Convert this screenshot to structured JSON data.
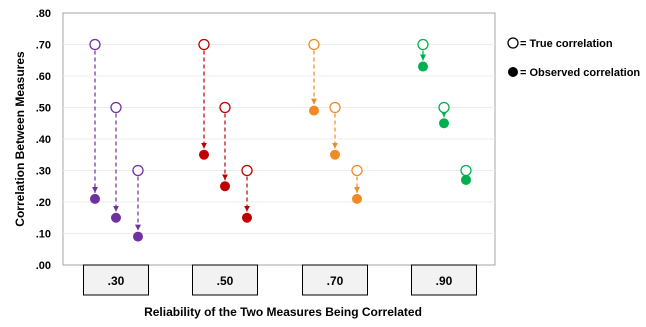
{
  "chart_data": {
    "type": "scatter",
    "xlabel": "Reliability of the Two Measures Being Correlated",
    "ylabel": "Correlation Between Measures",
    "ylim": [
      0,
      0.8
    ],
    "yticks": [
      ".00",
      ".10",
      ".20",
      ".30",
      ".40",
      ".50",
      ".60",
      ".70",
      ".80"
    ],
    "ytick_values": [
      0,
      0.1,
      0.2,
      0.3,
      0.4,
      0.5,
      0.6,
      0.7,
      0.8
    ],
    "grid": true,
    "categories": [
      ".30",
      ".50",
      ".70",
      ".90"
    ],
    "groups": [
      {
        "reliability": ".30",
        "color": "#7030a0",
        "true": [
          0.7,
          0.5,
          0.3
        ],
        "observed": [
          0.21,
          0.15,
          0.09
        ]
      },
      {
        "reliability": ".50",
        "color": "#c00000",
        "true": [
          0.7,
          0.5,
          0.3
        ],
        "observed": [
          0.35,
          0.25,
          0.15
        ]
      },
      {
        "reliability": ".70",
        "color": "#f08a24",
        "true": [
          0.7,
          0.5,
          0.3
        ],
        "observed": [
          0.49,
          0.35,
          0.21
        ]
      },
      {
        "reliability": ".90",
        "color": "#00b050",
        "true": [
          0.7,
          0.5,
          0.3
        ],
        "observed": [
          0.63,
          0.45,
          0.27
        ]
      }
    ],
    "legend": {
      "placement": "right",
      "items": [
        {
          "label": "= True correlation",
          "marker": "open-circle"
        },
        {
          "label": "= Observed correlation",
          "marker": "filled-circle"
        }
      ]
    }
  }
}
